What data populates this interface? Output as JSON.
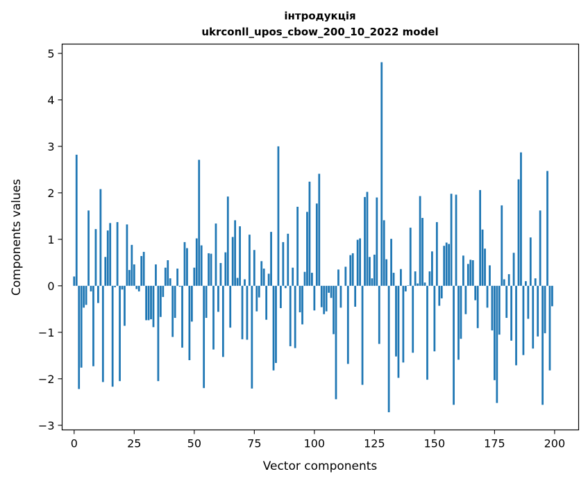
{
  "chart_data": {
    "type": "bar",
    "title": "інтродукція",
    "subtitle": "ukrconll_upos_cbow_200_10_2022 model",
    "xlabel": "Vector components",
    "ylabel": "Components values",
    "xlim": [
      -5,
      210
    ],
    "ylim": [
      -3.1,
      5.2
    ],
    "xticks": [
      0,
      25,
      50,
      75,
      100,
      125,
      150,
      175,
      200
    ],
    "yticks": [
      -3,
      -2,
      -1,
      0,
      1,
      2,
      3,
      4,
      5
    ],
    "grid": false,
    "bar_color": "#1f77b4",
    "x": [
      0,
      1,
      2,
      3,
      4,
      5,
      6,
      7,
      8,
      9,
      10,
      11,
      12,
      13,
      14,
      15,
      16,
      17,
      18,
      19,
      20,
      21,
      22,
      23,
      24,
      25,
      26,
      27,
      28,
      29,
      30,
      31,
      32,
      33,
      34,
      35,
      36,
      37,
      38,
      39,
      40,
      41,
      42,
      43,
      44,
      45,
      46,
      47,
      48,
      49,
      50,
      51,
      52,
      53,
      54,
      55,
      56,
      57,
      58,
      59,
      60,
      61,
      62,
      63,
      64,
      65,
      66,
      67,
      68,
      69,
      70,
      71,
      72,
      73,
      74,
      75,
      76,
      77,
      78,
      79,
      80,
      81,
      82,
      83,
      84,
      85,
      86,
      87,
      88,
      89,
      90,
      91,
      92,
      93,
      94,
      95,
      96,
      97,
      98,
      99,
      100,
      101,
      102,
      103,
      104,
      105,
      106,
      107,
      108,
      109,
      110,
      111,
      112,
      113,
      114,
      115,
      116,
      117,
      118,
      119,
      120,
      121,
      122,
      123,
      124,
      125,
      126,
      127,
      128,
      129,
      130,
      131,
      132,
      133,
      134,
      135,
      136,
      137,
      138,
      139,
      140,
      141,
      142,
      143,
      144,
      145,
      146,
      147,
      148,
      149,
      150,
      151,
      152,
      153,
      154,
      155,
      156,
      157,
      158,
      159,
      160,
      161,
      162,
      163,
      164,
      165,
      166,
      167,
      168,
      169,
      170,
      171,
      172,
      173,
      174,
      175,
      176,
      177,
      178,
      179,
      180,
      181,
      182,
      183,
      184,
      185,
      186,
      187,
      188,
      189,
      190,
      191,
      192,
      193,
      194,
      195,
      196,
      197,
      198,
      199
    ],
    "values": [
      0.2,
      2.82,
      -2.22,
      -1.76,
      -0.47,
      -0.41,
      1.62,
      -0.12,
      -1.73,
      1.22,
      -0.37,
      2.08,
      -2.07,
      0.62,
      1.19,
      1.35,
      -2.17,
      -0.03,
      1.37,
      -2.05,
      -0.08,
      -0.86,
      1.32,
      0.34,
      0.88,
      0.46,
      -0.07,
      -0.12,
      0.64,
      0.73,
      -0.74,
      -0.74,
      -0.72,
      -0.89,
      0.46,
      -2.05,
      -0.67,
      -0.24,
      0.39,
      0.55,
      0.16,
      -1.1,
      -0.69,
      0.37,
      -0.02,
      -1.33,
      0.94,
      0.81,
      -1.6,
      -0.77,
      0.39,
      1.02,
      2.71,
      0.87,
      -2.2,
      -0.69,
      0.7,
      0.69,
      -1.37,
      1.34,
      -0.56,
      0.49,
      -1.53,
      0.72,
      1.92,
      -0.9,
      1.05,
      1.41,
      0.17,
      1.28,
      -1.15,
      0.14,
      -1.16,
      1.1,
      -2.21,
      0.77,
      -0.55,
      -0.25,
      0.53,
      0.37,
      -0.73,
      0.26,
      1.16,
      -1.82,
      -1.66,
      3.0,
      -0.48,
      0.94,
      -0.05,
      1.12,
      -1.3,
      0.39,
      -1.34,
      1.7,
      -0.57,
      -0.83,
      0.3,
      1.59,
      2.24,
      0.28,
      -0.53,
      1.77,
      2.41,
      -0.46,
      -0.61,
      -0.55,
      -0.15,
      -0.26,
      -1.04,
      -2.44,
      0.35,
      -0.47,
      0.0,
      0.41,
      -1.68,
      0.66,
      0.7,
      -0.45,
      0.99,
      1.02,
      -2.13,
      1.91,
      2.02,
      0.62,
      0.16,
      0.67,
      1.9,
      -1.25,
      4.81,
      1.41,
      0.57,
      -2.72,
      1.01,
      0.28,
      -1.52,
      -1.98,
      0.36,
      -1.65,
      -0.12,
      0.01,
      1.25,
      -1.44,
      0.31,
      0.05,
      1.93,
      1.46,
      0.07,
      -2.02,
      0.31,
      0.74,
      -1.41,
      1.37,
      -0.43,
      -0.27,
      0.86,
      0.93,
      0.9,
      1.98,
      -2.56,
      1.96,
      -1.59,
      -1.14,
      0.65,
      -0.61,
      0.47,
      0.56,
      0.55,
      -0.31,
      -0.91,
      2.06,
      1.21,
      0.8,
      -0.47,
      0.44,
      -0.96,
      -2.03,
      -2.52,
      -1.05,
      1.73,
      0.14,
      -0.69,
      0.25,
      -1.18,
      0.71,
      -1.71,
      2.29,
      2.87,
      -1.49,
      0.1,
      -0.71,
      1.04,
      -1.35,
      0.16,
      -1.09,
      1.62,
      -2.56,
      -1.02,
      2.47,
      -1.82,
      -0.44
    ]
  }
}
